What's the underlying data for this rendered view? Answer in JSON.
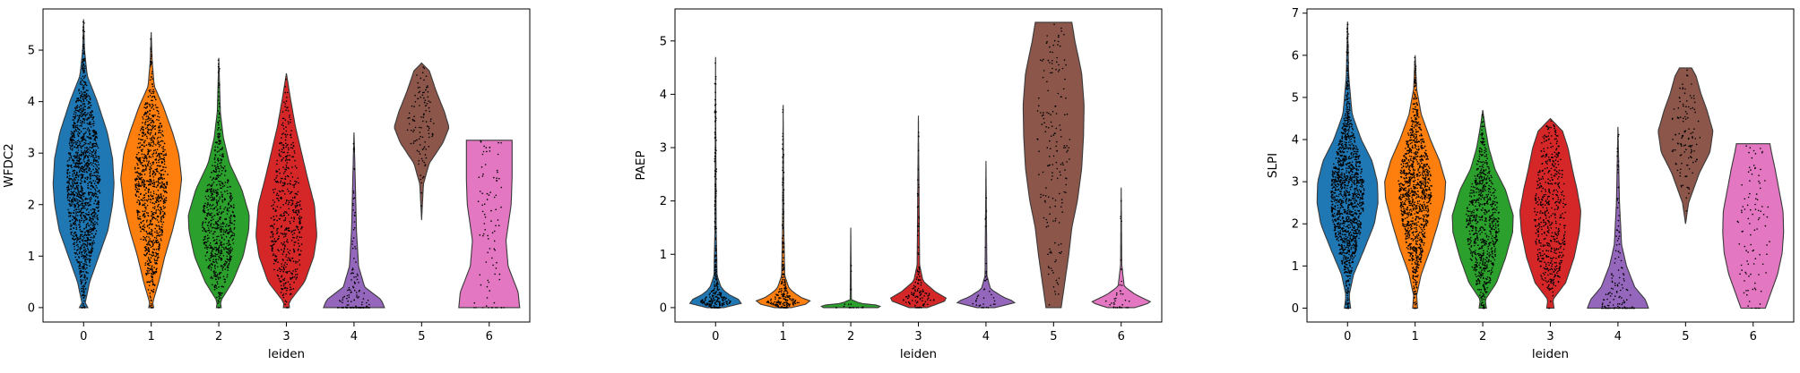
{
  "chart_data": [
    {
      "type": "violin",
      "xlabel": "leiden",
      "ylabel": "WFDC2",
      "categories": [
        "0",
        "1",
        "2",
        "3",
        "4",
        "5",
        "6"
      ],
      "colors": [
        "#1f77b4",
        "#ff7f0e",
        "#2ca02c",
        "#d62728",
        "#9467bd",
        "#8c564b",
        "#e377c2"
      ],
      "ylim": [
        -0.28,
        5.8
      ],
      "yticks": [
        0,
        1,
        2,
        3,
        4,
        5
      ],
      "grid": false,
      "legend": "none",
      "violins": [
        {
          "category": "0",
          "min": 0,
          "max": 5.6,
          "profile": [
            [
              0,
              0.14
            ],
            [
              0.08,
              0.05
            ],
            [
              0.5,
              0.2
            ],
            [
              1.0,
              0.5
            ],
            [
              1.5,
              0.8
            ],
            [
              2.0,
              0.95
            ],
            [
              2.4,
              1.0
            ],
            [
              2.9,
              0.95
            ],
            [
              3.4,
              0.78
            ],
            [
              4.0,
              0.45
            ],
            [
              4.5,
              0.12
            ],
            [
              5.0,
              0.03
            ],
            [
              5.6,
              0.0
            ]
          ],
          "points": 1500
        },
        {
          "category": "1",
          "min": 0,
          "max": 5.35,
          "profile": [
            [
              0,
              0.08
            ],
            [
              0.1,
              0.05
            ],
            [
              0.5,
              0.25
            ],
            [
              1.0,
              0.45
            ],
            [
              1.5,
              0.7
            ],
            [
              2.0,
              0.9
            ],
            [
              2.5,
              1.0
            ],
            [
              3.0,
              0.9
            ],
            [
              3.4,
              0.7
            ],
            [
              3.9,
              0.4
            ],
            [
              4.3,
              0.1
            ],
            [
              4.8,
              0.03
            ],
            [
              5.35,
              0.0
            ]
          ],
          "points": 1000
        },
        {
          "category": "2",
          "min": 0,
          "max": 4.85,
          "profile": [
            [
              0,
              0.08
            ],
            [
              0.12,
              0.05
            ],
            [
              0.5,
              0.45
            ],
            [
              1.0,
              0.8
            ],
            [
              1.5,
              0.98
            ],
            [
              1.8,
              1.0
            ],
            [
              2.3,
              0.75
            ],
            [
              2.8,
              0.35
            ],
            [
              3.3,
              0.15
            ],
            [
              3.8,
              0.05
            ],
            [
              4.85,
              0.0
            ]
          ],
          "points": 700
        },
        {
          "category": "3",
          "min": 0,
          "max": 4.55,
          "profile": [
            [
              0,
              0.1
            ],
            [
              0.1,
              0.08
            ],
            [
              0.5,
              0.6
            ],
            [
              1.0,
              0.9
            ],
            [
              1.4,
              1.0
            ],
            [
              2.0,
              0.92
            ],
            [
              2.5,
              0.7
            ],
            [
              3.0,
              0.5
            ],
            [
              3.5,
              0.3
            ],
            [
              4.0,
              0.15
            ],
            [
              4.55,
              0.0
            ]
          ],
          "points": 500
        },
        {
          "category": "4",
          "min": 0,
          "max": 3.4,
          "profile": [
            [
              0,
              1.0
            ],
            [
              0.15,
              0.9
            ],
            [
              0.4,
              0.35
            ],
            [
              0.8,
              0.15
            ],
            [
              1.5,
              0.08
            ],
            [
              2.5,
              0.04
            ],
            [
              3.4,
              0.0
            ]
          ],
          "points": 150
        },
        {
          "category": "5",
          "min": 1.7,
          "max": 4.75,
          "profile": [
            [
              1.7,
              0.0
            ],
            [
              2.4,
              0.06
            ],
            [
              2.8,
              0.25
            ],
            [
              3.2,
              0.7
            ],
            [
              3.5,
              0.9
            ],
            [
              3.8,
              0.75
            ],
            [
              4.2,
              0.48
            ],
            [
              4.6,
              0.25
            ],
            [
              4.75,
              0.0
            ]
          ],
          "points": 110
        },
        {
          "category": "6",
          "min": 0,
          "max": 3.25,
          "profile": [
            [
              0,
              1.0
            ],
            [
              0.3,
              0.95
            ],
            [
              0.8,
              0.62
            ],
            [
              1.3,
              0.55
            ],
            [
              2.0,
              0.72
            ],
            [
              2.5,
              0.75
            ],
            [
              3.0,
              0.75
            ],
            [
              3.25,
              0.75
            ]
          ],
          "points": 90
        }
      ]
    },
    {
      "type": "violin",
      "xlabel": "leiden",
      "ylabel": "PAEP",
      "categories": [
        "0",
        "1",
        "2",
        "3",
        "4",
        "5",
        "6"
      ],
      "colors": [
        "#1f77b4",
        "#ff7f0e",
        "#2ca02c",
        "#d62728",
        "#9467bd",
        "#8c564b",
        "#e377c2"
      ],
      "ylim": [
        -0.27,
        5.6
      ],
      "yticks": [
        0,
        1,
        2,
        3,
        4,
        5
      ],
      "grid": false,
      "legend": "none",
      "violins": [
        {
          "category": "0",
          "min": 0,
          "max": 4.7,
          "profile": [
            [
              0,
              0.28
            ],
            [
              0.1,
              1.0
            ],
            [
              0.2,
              0.55
            ],
            [
              0.35,
              0.2
            ],
            [
              0.6,
              0.05
            ],
            [
              1.5,
              0.02
            ],
            [
              4.7,
              0.0
            ]
          ],
          "points": 300
        },
        {
          "category": "1",
          "min": 0,
          "max": 3.8,
          "profile": [
            [
              0,
              0.28
            ],
            [
              0.1,
              1.0
            ],
            [
              0.2,
              0.55
            ],
            [
              0.35,
              0.2
            ],
            [
              0.6,
              0.05
            ],
            [
              1.5,
              0.02
            ],
            [
              3.8,
              0.0
            ]
          ],
          "points": 250
        },
        {
          "category": "2",
          "min": 0,
          "max": 1.5,
          "profile": [
            [
              0,
              0.9
            ],
            [
              0.04,
              1.0
            ],
            [
              0.08,
              0.3
            ],
            [
              0.15,
              0.02
            ],
            [
              1.5,
              0.0
            ]
          ],
          "points": 20
        },
        {
          "category": "3",
          "min": 0,
          "max": 3.6,
          "profile": [
            [
              0,
              0.3
            ],
            [
              0.15,
              1.0
            ],
            [
              0.3,
              0.55
            ],
            [
              0.5,
              0.15
            ],
            [
              0.8,
              0.04
            ],
            [
              3.6,
              0.0
            ]
          ],
          "points": 120
        },
        {
          "category": "4",
          "min": 0,
          "max": 2.75,
          "profile": [
            [
              0,
              0.3
            ],
            [
              0.1,
              1.0
            ],
            [
              0.2,
              0.55
            ],
            [
              0.35,
              0.15
            ],
            [
              0.6,
              0.03
            ],
            [
              2.75,
              0.0
            ]
          ],
          "points": 40
        },
        {
          "category": "5",
          "min": 0,
          "max": 5.35,
          "profile": [
            [
              0,
              0.25
            ],
            [
              0.4,
              0.35
            ],
            [
              1.0,
              0.5
            ],
            [
              1.5,
              0.6
            ],
            [
              2.0,
              0.78
            ],
            [
              2.6,
              0.92
            ],
            [
              3.2,
              0.98
            ],
            [
              3.8,
              1.0
            ],
            [
              4.4,
              0.92
            ],
            [
              5.0,
              0.7
            ],
            [
              5.35,
              0.6
            ]
          ],
          "points": 180
        },
        {
          "category": "6",
          "min": 0,
          "max": 2.25,
          "profile": [
            [
              0,
              0.45
            ],
            [
              0.1,
              1.0
            ],
            [
              0.25,
              0.45
            ],
            [
              0.4,
              0.1
            ],
            [
              0.8,
              0.02
            ],
            [
              2.25,
              0.0
            ]
          ],
          "points": 40
        }
      ]
    },
    {
      "type": "violin",
      "xlabel": "leiden",
      "ylabel": "SLPI",
      "categories": [
        "0",
        "1",
        "2",
        "3",
        "4",
        "5",
        "6"
      ],
      "colors": [
        "#1f77b4",
        "#ff7f0e",
        "#2ca02c",
        "#d62728",
        "#9467bd",
        "#8c564b",
        "#e377c2"
      ],
      "ylim": [
        -0.33,
        7.1
      ],
      "yticks": [
        0,
        1,
        2,
        3,
        4,
        5,
        6,
        7
      ],
      "grid": false,
      "legend": "none",
      "violins": [
        {
          "category": "0",
          "min": 0,
          "max": 6.8,
          "profile": [
            [
              0,
              0.1
            ],
            [
              0.3,
              0.05
            ],
            [
              0.8,
              0.2
            ],
            [
              1.4,
              0.55
            ],
            [
              2.0,
              0.88
            ],
            [
              2.5,
              1.0
            ],
            [
              3.0,
              0.98
            ],
            [
              3.5,
              0.8
            ],
            [
              4.0,
              0.45
            ],
            [
              4.6,
              0.15
            ],
            [
              5.5,
              0.04
            ],
            [
              6.8,
              0.0
            ]
          ],
          "points": 1600
        },
        {
          "category": "1",
          "min": 0,
          "max": 6.0,
          "profile": [
            [
              0,
              0.08
            ],
            [
              0.3,
              0.05
            ],
            [
              0.8,
              0.2
            ],
            [
              1.4,
              0.5
            ],
            [
              2.0,
              0.75
            ],
            [
              2.6,
              0.97
            ],
            [
              3.0,
              1.0
            ],
            [
              3.5,
              0.8
            ],
            [
              4.0,
              0.5
            ],
            [
              4.6,
              0.2
            ],
            [
              5.2,
              0.05
            ],
            [
              6.0,
              0.0
            ]
          ],
          "points": 1100
        },
        {
          "category": "2",
          "min": 0,
          "max": 4.7,
          "profile": [
            [
              0,
              0.12
            ],
            [
              0.2,
              0.08
            ],
            [
              0.6,
              0.45
            ],
            [
              1.2,
              0.75
            ],
            [
              1.8,
              0.98
            ],
            [
              2.2,
              1.0
            ],
            [
              2.8,
              0.75
            ],
            [
              3.3,
              0.4
            ],
            [
              3.8,
              0.2
            ],
            [
              4.3,
              0.08
            ],
            [
              4.7,
              0.0
            ]
          ],
          "points": 750
        },
        {
          "category": "3",
          "min": 0,
          "max": 4.5,
          "profile": [
            [
              0,
              0.12
            ],
            [
              0.2,
              0.08
            ],
            [
              0.6,
              0.5
            ],
            [
              1.2,
              0.78
            ],
            [
              1.8,
              0.95
            ],
            [
              2.3,
              1.0
            ],
            [
              2.8,
              0.88
            ],
            [
              3.3,
              0.72
            ],
            [
              3.8,
              0.58
            ],
            [
              4.2,
              0.4
            ],
            [
              4.5,
              0.0
            ]
          ],
          "points": 550
        },
        {
          "category": "4",
          "min": 0,
          "max": 4.3,
          "profile": [
            [
              0,
              1.0
            ],
            [
              0.2,
              0.9
            ],
            [
              0.5,
              0.55
            ],
            [
              1.0,
              0.28
            ],
            [
              1.5,
              0.12
            ],
            [
              2.5,
              0.05
            ],
            [
              4.3,
              0.0
            ]
          ],
          "points": 160
        },
        {
          "category": "5",
          "min": 2.0,
          "max": 5.7,
          "profile": [
            [
              2.0,
              0.0
            ],
            [
              2.5,
              0.1
            ],
            [
              3.2,
              0.45
            ],
            [
              3.7,
              0.8
            ],
            [
              4.2,
              0.9
            ],
            [
              4.7,
              0.7
            ],
            [
              5.1,
              0.5
            ],
            [
              5.5,
              0.35
            ],
            [
              5.7,
              0.2
            ]
          ],
          "points": 120
        },
        {
          "category": "6",
          "min": 0,
          "max": 3.9,
          "profile": [
            [
              0,
              0.4
            ],
            [
              0.3,
              0.55
            ],
            [
              0.8,
              0.8
            ],
            [
              1.3,
              0.95
            ],
            [
              1.8,
              1.0
            ],
            [
              2.3,
              0.98
            ],
            [
              2.8,
              0.85
            ],
            [
              3.3,
              0.72
            ],
            [
              3.7,
              0.6
            ],
            [
              3.9,
              0.55
            ]
          ],
          "points": 100
        }
      ]
    }
  ]
}
